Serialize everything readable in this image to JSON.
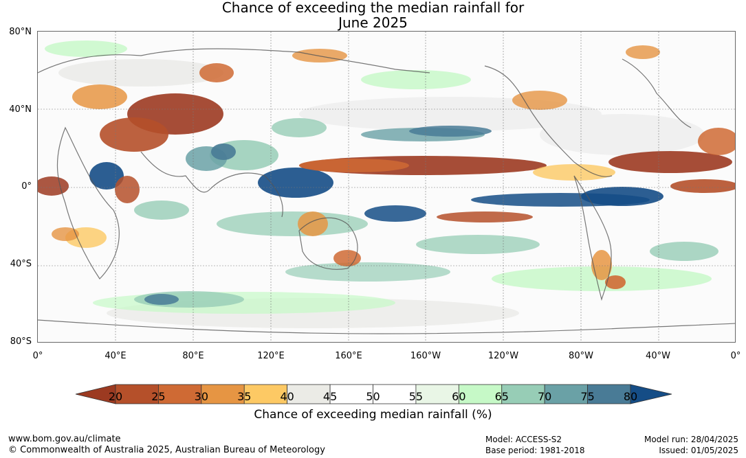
{
  "title_line1": "Chance of exceeding the median rainfall for",
  "title_line2": "June 2025",
  "lat_labels": [
    "80°N",
    "40°N",
    "0°",
    "40°S",
    "80°S"
  ],
  "lon_labels": [
    "0°",
    "40°E",
    "80°E",
    "120°E",
    "160°E",
    "160°W",
    "120°W",
    "80°W",
    "40°W",
    "0°"
  ],
  "legend": {
    "title": "Chance of exceeding median rainfall (%)",
    "ticks": [
      "20",
      "25",
      "30",
      "35",
      "40",
      "45",
      "50",
      "55",
      "60",
      "65",
      "70",
      "75",
      "80"
    ],
    "colors": [
      "#9c3a21",
      "#b5502a",
      "#cf6a34",
      "#e69543",
      "#fdc964",
      "#ebebe6",
      "#ffffff",
      "#ffffff",
      "#e9f6e6",
      "#c6f9c7",
      "#97cdb6",
      "#6aa1a6",
      "#497b96",
      "#154d86"
    ]
  },
  "footer": {
    "url": "www.bom.gov.au/climate",
    "copyright": "© Commonwealth of Australia 2025, Australian Bureau of Meteorology",
    "model": "Model: ACCESS-S2",
    "base_period": "Base period: 1981-2018",
    "model_run": "Model run: 28/04/2025",
    "issued": "Issued: 01/05/2025"
  }
}
